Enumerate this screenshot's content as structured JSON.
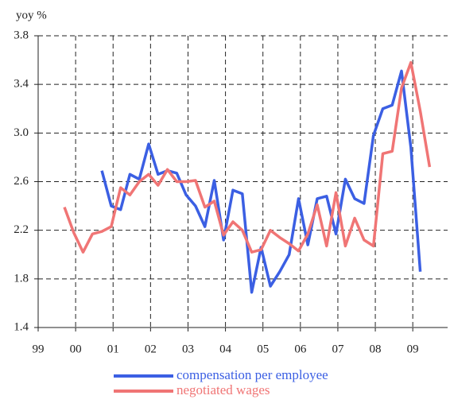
{
  "chart_data": {
    "type": "line",
    "y_label": "yoy %",
    "x": [
      1999.7,
      1999.95,
      2000.2,
      2000.45,
      2000.7,
      2000.95,
      2001.2,
      2001.45,
      2001.7,
      2001.95,
      2002.2,
      2002.45,
      2002.7,
      2002.95,
      2003.2,
      2003.45,
      2003.7,
      2003.95,
      2004.2,
      2004.45,
      2004.7,
      2004.95,
      2005.2,
      2005.45,
      2005.7,
      2005.95,
      2006.2,
      2006.45,
      2006.7,
      2006.95,
      2007.2,
      2007.45,
      2007.7,
      2007.95,
      2008.2,
      2008.45,
      2008.7,
      2008.95,
      2009.2,
      2009.45
    ],
    "series": [
      {
        "name": "compensation per employee",
        "color": "#3b5fe3",
        "values": [
          null,
          null,
          null,
          null,
          2.69,
          2.4,
          2.37,
          2.66,
          2.62,
          2.91,
          2.66,
          2.69,
          2.67,
          2.49,
          2.4,
          2.23,
          2.61,
          2.12,
          2.53,
          2.5,
          1.69,
          2.06,
          1.74,
          1.86,
          2.0,
          2.46,
          2.08,
          2.46,
          2.48,
          2.17,
          2.62,
          2.46,
          2.42,
          2.98,
          3.2,
          3.23,
          3.51,
          2.88,
          1.86,
          null
        ]
      },
      {
        "name": "negotiated wages",
        "color": "#f07575",
        "values": [
          2.39,
          2.18,
          2.02,
          2.17,
          2.19,
          2.23,
          2.55,
          2.49,
          2.6,
          2.66,
          2.57,
          2.7,
          2.6,
          2.6,
          2.61,
          2.39,
          2.44,
          2.16,
          2.27,
          2.2,
          2.02,
          2.04,
          2.2,
          2.14,
          2.09,
          2.03,
          2.17,
          2.41,
          2.07,
          2.51,
          2.07,
          2.3,
          2.12,
          2.07,
          2.83,
          2.85,
          3.37,
          3.58,
          3.18,
          2.72
        ]
      }
    ],
    "xlim": [
      1999,
      2009.93
    ],
    "xticks": [
      {
        "value": 1999,
        "label": "99"
      },
      {
        "value": 2000,
        "label": "00"
      },
      {
        "value": 2001,
        "label": "01"
      },
      {
        "value": 2002,
        "label": "02"
      },
      {
        "value": 2003,
        "label": "03"
      },
      {
        "value": 2004,
        "label": "04"
      },
      {
        "value": 2005,
        "label": "05"
      },
      {
        "value": 2006,
        "label": "06"
      },
      {
        "value": 2007,
        "label": "07"
      },
      {
        "value": 2008,
        "label": "08"
      },
      {
        "value": 2009,
        "label": "09"
      }
    ],
    "ylim": [
      1.4,
      3.8
    ],
    "yticks": [
      1.4,
      1.8,
      2.2,
      2.6,
      {
        "value": 3,
        "label": "3.0"
      },
      3.4,
      3.8
    ],
    "grid": true,
    "legend": "bottom"
  }
}
